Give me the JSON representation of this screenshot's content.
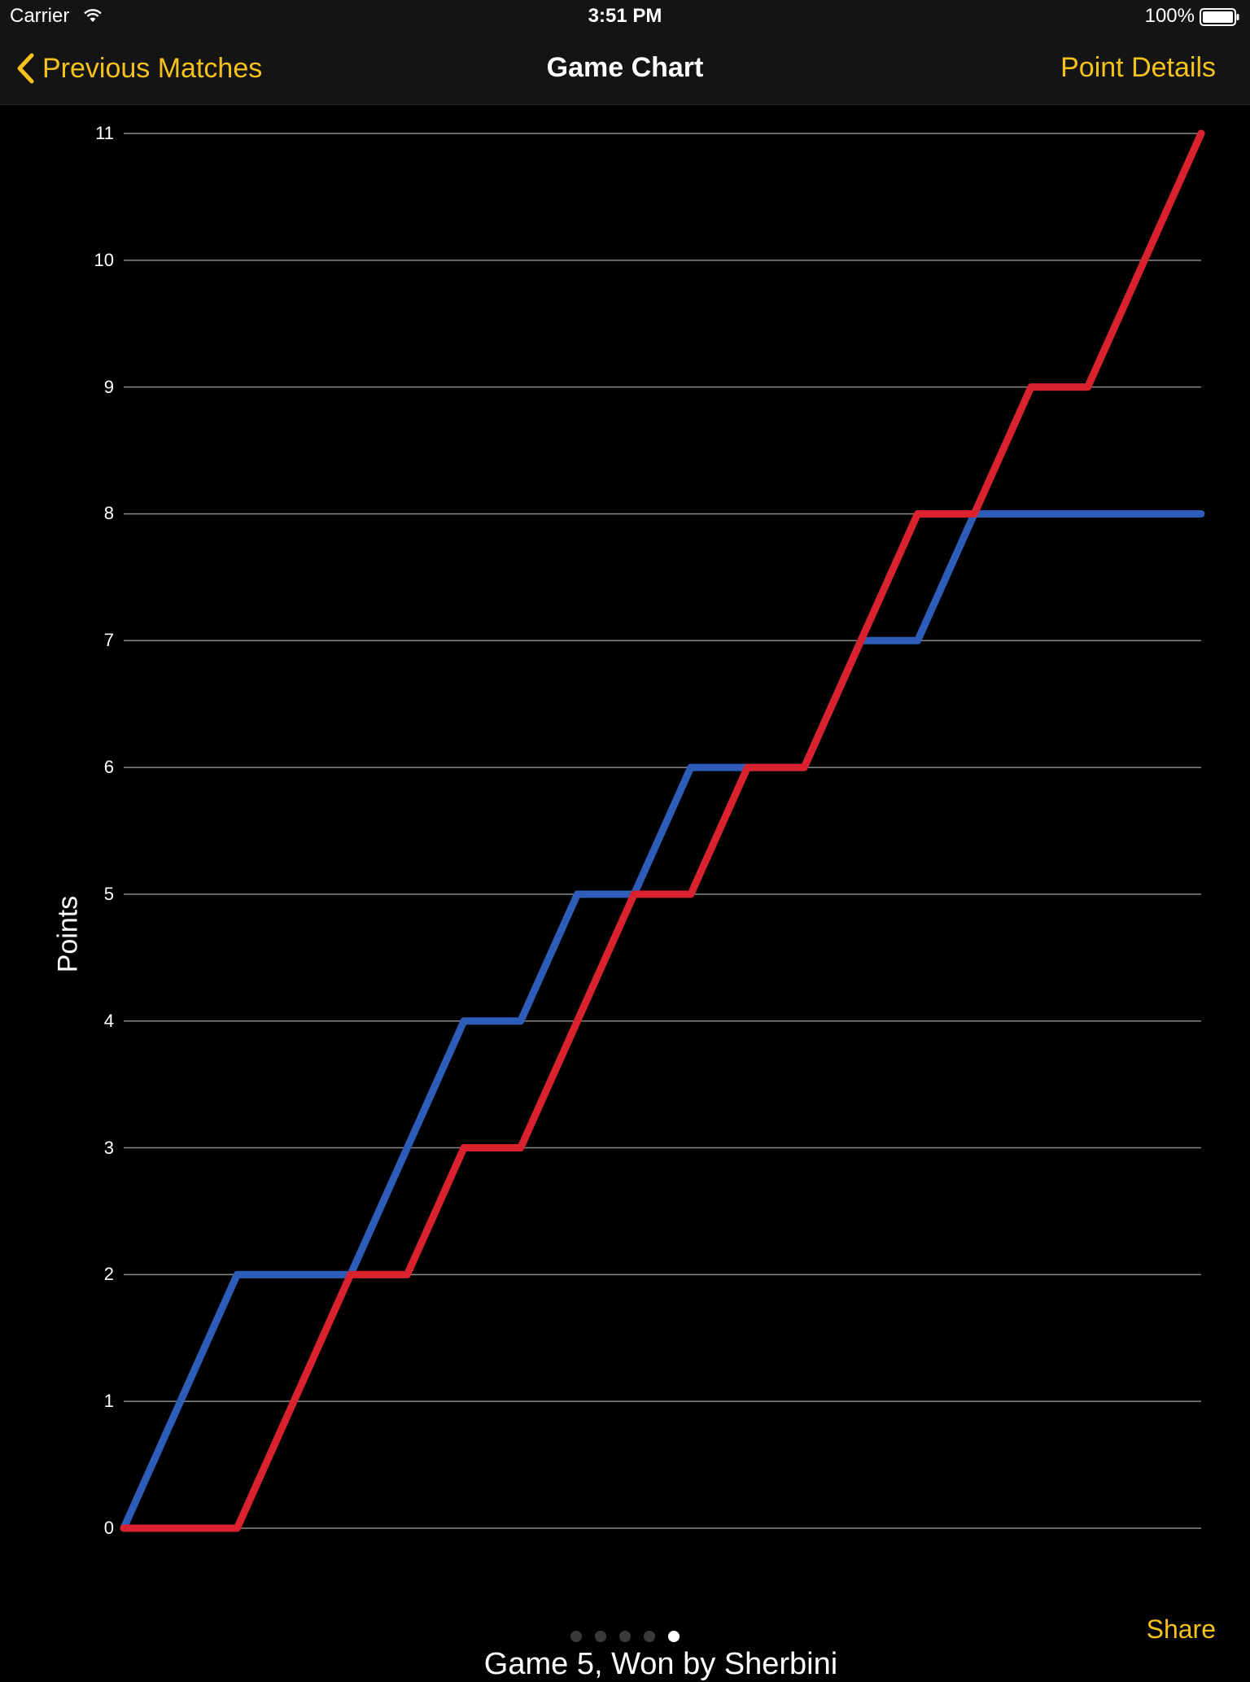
{
  "status_bar": {
    "carrier": "Carrier",
    "time": "3:51 PM",
    "battery": "100%"
  },
  "nav": {
    "back_label": "Previous Matches",
    "title": "Game Chart",
    "right_label": "Point Details"
  },
  "chart_data": {
    "type": "line",
    "ylabel": "Points",
    "caption": "Game 5, Won by Sherbini",
    "ylim": [
      0,
      11
    ],
    "yticks": [
      "0",
      "1",
      "2",
      "3",
      "4",
      "5",
      "6",
      "7",
      "8",
      "9",
      "10",
      "11"
    ],
    "grid": true,
    "x": [
      0,
      1,
      2,
      3,
      4,
      5,
      6,
      7,
      8,
      9,
      10,
      11,
      12,
      13,
      14,
      15,
      16,
      17,
      18,
      19
    ],
    "series": [
      {
        "color": "#2D5DB8",
        "values": [
          0,
          1,
          2,
          2,
          2,
          3,
          4,
          4,
          5,
          5,
          6,
          6,
          6,
          7,
          7,
          8,
          8,
          8,
          8,
          8
        ]
      },
      {
        "color": "#D9222E",
        "values": [
          0,
          0,
          0,
          1,
          2,
          2,
          3,
          3,
          4,
          5,
          5,
          6,
          6,
          7,
          8,
          8,
          9,
          9,
          10,
          11
        ]
      }
    ]
  },
  "footer": {
    "share_label": "Share",
    "page_count": 5,
    "current_page": 5
  },
  "colors": {
    "accent": "#F5C11B",
    "background": "#000000",
    "bar": "#141414"
  }
}
